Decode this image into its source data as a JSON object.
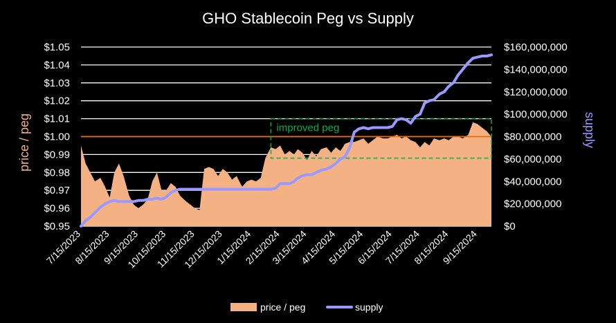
{
  "chart_data": {
    "type": "area",
    "title": "GHO Stablecoin Peg vs Supply",
    "ylabel": "price / peg",
    "y2label": "supply",
    "ylim": [
      0.95,
      1.05
    ],
    "y2lim": [
      0,
      160000000
    ],
    "yticks": [
      "$0.95",
      "$0.96",
      "$0.97",
      "$0.98",
      "$0.99",
      "$1.00",
      "$1.01",
      "$1.02",
      "$1.03",
      "$1.04",
      "$1.05"
    ],
    "y2ticks": [
      "$0",
      "$20,000,000",
      "$40,000,000",
      "$60,000,000",
      "$80,000,000",
      "$100,000,000",
      "$120,000,000",
      "$140,000,000",
      "$160,000,000"
    ],
    "xticks": [
      "7/15/2023",
      "8/15/2023",
      "9/15/2023",
      "10/15/2023",
      "11/15/2023",
      "12/15/2023",
      "1/15/2024",
      "2/15/2024",
      "3/15/2024",
      "4/15/2024",
      "5/15/2024",
      "6/15/2024",
      "7/15/2024",
      "8/15/2024",
      "9/15/2024"
    ],
    "x": [
      "7/15/2023",
      "7/20/2023",
      "7/25/2023",
      "7/30/2023",
      "8/5/2023",
      "8/10/2023",
      "8/15/2023",
      "8/20/2023",
      "8/25/2023",
      "8/30/2023",
      "9/5/2023",
      "9/10/2023",
      "9/15/2023",
      "9/20/2023",
      "9/25/2023",
      "9/30/2023",
      "10/5/2023",
      "10/10/2023",
      "10/15/2023",
      "10/20/2023",
      "10/25/2023",
      "10/30/2023",
      "11/5/2023",
      "11/10/2023",
      "11/15/2023",
      "11/20/2023",
      "11/25/2023",
      "11/30/2023",
      "12/5/2023",
      "12/10/2023",
      "12/15/2023",
      "12/20/2023",
      "12/25/2023",
      "12/30/2023",
      "1/5/2024",
      "1/10/2024",
      "1/15/2024",
      "1/20/2024",
      "1/25/2024",
      "1/30/2024",
      "2/5/2024",
      "2/10/2024",
      "2/15/2024",
      "2/20/2024",
      "2/25/2024",
      "3/1/2024",
      "3/5/2024",
      "3/10/2024",
      "3/15/2024",
      "3/20/2024",
      "3/25/2024",
      "3/30/2024",
      "4/5/2024",
      "4/10/2024",
      "4/15/2024",
      "4/20/2024",
      "4/25/2024",
      "4/30/2024",
      "5/5/2024",
      "5/10/2024",
      "5/15/2024",
      "5/20/2024",
      "5/25/2024",
      "5/30/2024",
      "6/5/2024",
      "6/10/2024",
      "6/15/2024",
      "6/20/2024",
      "6/25/2024",
      "6/30/2024",
      "7/5/2024",
      "7/10/2024",
      "7/15/2024",
      "7/20/2024",
      "7/25/2024",
      "7/30/2024",
      "8/5/2024",
      "8/10/2024",
      "8/15/2024",
      "8/20/2024",
      "8/25/2024",
      "8/30/2024",
      "9/5/2024",
      "9/10/2024",
      "9/15/2024",
      "9/20/2024",
      "9/25/2024",
      "9/30/2024"
    ],
    "series": [
      {
        "name": "price / peg",
        "axis": "left",
        "style": "area",
        "color": "#f4b183",
        "values": [
          0.995,
          0.985,
          0.98,
          0.975,
          0.977,
          0.972,
          0.966,
          0.98,
          0.985,
          0.978,
          0.967,
          0.962,
          0.96,
          0.962,
          0.965,
          0.975,
          0.98,
          0.97,
          0.97,
          0.974,
          0.972,
          0.967,
          0.964,
          0.962,
          0.96,
          0.959,
          0.982,
          0.983,
          0.982,
          0.978,
          0.982,
          0.98,
          0.976,
          0.978,
          0.972,
          0.975,
          0.976,
          0.975,
          0.977,
          0.988,
          0.994,
          0.993,
          0.995,
          0.99,
          0.992,
          0.99,
          0.993,
          0.991,
          0.987,
          0.992,
          0.989,
          0.993,
          0.994,
          0.991,
          0.994,
          0.992,
          0.996,
          0.997,
          0.997,
          0.998,
          0.999,
          0.996,
          0.998,
          1.0,
          0.999,
          0.999,
          1.0,
          1.001,
          0.999,
          1.0,
          0.998,
          0.997,
          0.994,
          0.997,
          0.995,
          0.999,
          0.998,
          0.999,
          0.998,
          1.0,
          1.0,
          0.999,
          1.001,
          1.008,
          1.007,
          1.005,
          1.003,
          1.0
        ]
      },
      {
        "name": "supply",
        "axis": "right",
        "style": "line",
        "color": "#9999ff",
        "values": [
          0,
          5000000,
          8000000,
          12000000,
          17000000,
          20000000,
          22000000,
          23000000,
          22000000,
          22000000,
          22000000,
          22000000,
          23000000,
          23000000,
          24000000,
          24000000,
          25000000,
          24000000,
          26000000,
          30000000,
          32000000,
          33000000,
          33000000,
          33000000,
          33000000,
          33000000,
          33000000,
          33000000,
          33000000,
          33000000,
          33000000,
          33000000,
          33000000,
          33000000,
          33000000,
          33000000,
          33000000,
          33000000,
          33000000,
          33000000,
          33000000,
          34000000,
          38000000,
          38000000,
          38000000,
          40000000,
          43000000,
          45000000,
          46000000,
          46000000,
          48000000,
          50000000,
          51000000,
          53000000,
          56000000,
          60000000,
          62000000,
          70000000,
          84000000,
          87000000,
          88000000,
          87000000,
          88000000,
          88000000,
          88000000,
          88000000,
          89000000,
          95000000,
          96000000,
          95000000,
          92000000,
          98000000,
          100000000,
          110000000,
          112000000,
          113000000,
          118000000,
          120000000,
          125000000,
          128000000,
          135000000,
          140000000,
          146000000,
          150000000,
          151000000,
          152000000,
          152000000,
          153000000
        ]
      }
    ],
    "reference_line": {
      "value": 1.0,
      "color": "#e46c0a"
    },
    "annotation": {
      "text": "improved peg",
      "color": "#00b050",
      "x_range": [
        "2/5/2024",
        "9/30/2024"
      ],
      "y_range": [
        0.988,
        1.01
      ]
    },
    "grid": true,
    "legend": {
      "position": "bottom",
      "entries": [
        "price / peg",
        "supply"
      ]
    }
  }
}
